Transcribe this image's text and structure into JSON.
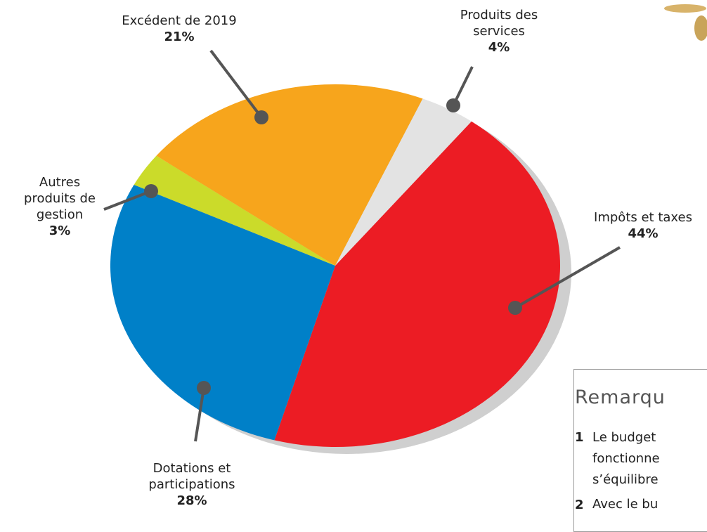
{
  "chart_data": {
    "type": "pie",
    "categories": [
      "Impôts et taxes",
      "Dotations et participations",
      "Autres produits de gestion",
      "Excédent de 2019",
      "Produits des services"
    ],
    "values": [
      44,
      28,
      3,
      21,
      4
    ],
    "value_labels": [
      "44%",
      "28%",
      "3%",
      "21%",
      "4%"
    ],
    "colors": [
      "#ec1c24",
      "#0080c8",
      "#cbdb2a",
      "#f7a51c",
      "#e3e3e3"
    ]
  },
  "note_box": {
    "title": "Remarqu",
    "items": [
      {
        "number": "1",
        "lines": [
          "Le budget",
          "fonctionne",
          "s’équilibre"
        ]
      },
      {
        "number": "2",
        "lines": [
          "Avec le bu"
        ]
      }
    ]
  }
}
